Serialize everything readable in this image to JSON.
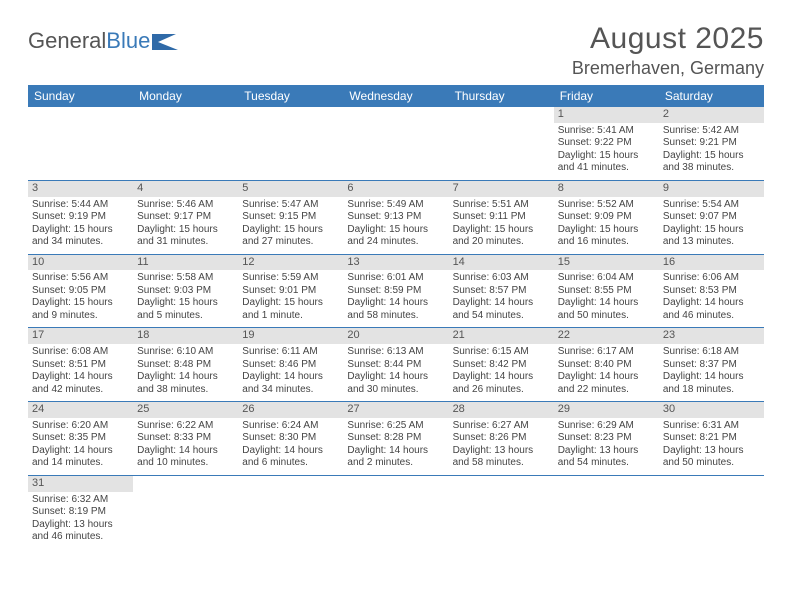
{
  "logo": {
    "text1": "General",
    "text2": "Blue"
  },
  "title": "August 2025",
  "location": "Bremerhaven, Germany",
  "colors": {
    "header_bg": "#3a7ab8",
    "header_fg": "#ffffff",
    "daynum_bg": "#e3e3e3",
    "row_divider": "#3a7ab8",
    "text": "#444444",
    "title_color": "#555555"
  },
  "weekdays": [
    "Sunday",
    "Monday",
    "Tuesday",
    "Wednesday",
    "Thursday",
    "Friday",
    "Saturday"
  ],
  "weeks": [
    [
      {
        "n": "",
        "sr": "",
        "ss": "",
        "dl1": "",
        "dl2": ""
      },
      {
        "n": "",
        "sr": "",
        "ss": "",
        "dl1": "",
        "dl2": ""
      },
      {
        "n": "",
        "sr": "",
        "ss": "",
        "dl1": "",
        "dl2": ""
      },
      {
        "n": "",
        "sr": "",
        "ss": "",
        "dl1": "",
        "dl2": ""
      },
      {
        "n": "",
        "sr": "",
        "ss": "",
        "dl1": "",
        "dl2": ""
      },
      {
        "n": "1",
        "sr": "Sunrise: 5:41 AM",
        "ss": "Sunset: 9:22 PM",
        "dl1": "Daylight: 15 hours",
        "dl2": "and 41 minutes."
      },
      {
        "n": "2",
        "sr": "Sunrise: 5:42 AM",
        "ss": "Sunset: 9:21 PM",
        "dl1": "Daylight: 15 hours",
        "dl2": "and 38 minutes."
      }
    ],
    [
      {
        "n": "3",
        "sr": "Sunrise: 5:44 AM",
        "ss": "Sunset: 9:19 PM",
        "dl1": "Daylight: 15 hours",
        "dl2": "and 34 minutes."
      },
      {
        "n": "4",
        "sr": "Sunrise: 5:46 AM",
        "ss": "Sunset: 9:17 PM",
        "dl1": "Daylight: 15 hours",
        "dl2": "and 31 minutes."
      },
      {
        "n": "5",
        "sr": "Sunrise: 5:47 AM",
        "ss": "Sunset: 9:15 PM",
        "dl1": "Daylight: 15 hours",
        "dl2": "and 27 minutes."
      },
      {
        "n": "6",
        "sr": "Sunrise: 5:49 AM",
        "ss": "Sunset: 9:13 PM",
        "dl1": "Daylight: 15 hours",
        "dl2": "and 24 minutes."
      },
      {
        "n": "7",
        "sr": "Sunrise: 5:51 AM",
        "ss": "Sunset: 9:11 PM",
        "dl1": "Daylight: 15 hours",
        "dl2": "and 20 minutes."
      },
      {
        "n": "8",
        "sr": "Sunrise: 5:52 AM",
        "ss": "Sunset: 9:09 PM",
        "dl1": "Daylight: 15 hours",
        "dl2": "and 16 minutes."
      },
      {
        "n": "9",
        "sr": "Sunrise: 5:54 AM",
        "ss": "Sunset: 9:07 PM",
        "dl1": "Daylight: 15 hours",
        "dl2": "and 13 minutes."
      }
    ],
    [
      {
        "n": "10",
        "sr": "Sunrise: 5:56 AM",
        "ss": "Sunset: 9:05 PM",
        "dl1": "Daylight: 15 hours",
        "dl2": "and 9 minutes."
      },
      {
        "n": "11",
        "sr": "Sunrise: 5:58 AM",
        "ss": "Sunset: 9:03 PM",
        "dl1": "Daylight: 15 hours",
        "dl2": "and 5 minutes."
      },
      {
        "n": "12",
        "sr": "Sunrise: 5:59 AM",
        "ss": "Sunset: 9:01 PM",
        "dl1": "Daylight: 15 hours",
        "dl2": "and 1 minute."
      },
      {
        "n": "13",
        "sr": "Sunrise: 6:01 AM",
        "ss": "Sunset: 8:59 PM",
        "dl1": "Daylight: 14 hours",
        "dl2": "and 58 minutes."
      },
      {
        "n": "14",
        "sr": "Sunrise: 6:03 AM",
        "ss": "Sunset: 8:57 PM",
        "dl1": "Daylight: 14 hours",
        "dl2": "and 54 minutes."
      },
      {
        "n": "15",
        "sr": "Sunrise: 6:04 AM",
        "ss": "Sunset: 8:55 PM",
        "dl1": "Daylight: 14 hours",
        "dl2": "and 50 minutes."
      },
      {
        "n": "16",
        "sr": "Sunrise: 6:06 AM",
        "ss": "Sunset: 8:53 PM",
        "dl1": "Daylight: 14 hours",
        "dl2": "and 46 minutes."
      }
    ],
    [
      {
        "n": "17",
        "sr": "Sunrise: 6:08 AM",
        "ss": "Sunset: 8:51 PM",
        "dl1": "Daylight: 14 hours",
        "dl2": "and 42 minutes."
      },
      {
        "n": "18",
        "sr": "Sunrise: 6:10 AM",
        "ss": "Sunset: 8:48 PM",
        "dl1": "Daylight: 14 hours",
        "dl2": "and 38 minutes."
      },
      {
        "n": "19",
        "sr": "Sunrise: 6:11 AM",
        "ss": "Sunset: 8:46 PM",
        "dl1": "Daylight: 14 hours",
        "dl2": "and 34 minutes."
      },
      {
        "n": "20",
        "sr": "Sunrise: 6:13 AM",
        "ss": "Sunset: 8:44 PM",
        "dl1": "Daylight: 14 hours",
        "dl2": "and 30 minutes."
      },
      {
        "n": "21",
        "sr": "Sunrise: 6:15 AM",
        "ss": "Sunset: 8:42 PM",
        "dl1": "Daylight: 14 hours",
        "dl2": "and 26 minutes."
      },
      {
        "n": "22",
        "sr": "Sunrise: 6:17 AM",
        "ss": "Sunset: 8:40 PM",
        "dl1": "Daylight: 14 hours",
        "dl2": "and 22 minutes."
      },
      {
        "n": "23",
        "sr": "Sunrise: 6:18 AM",
        "ss": "Sunset: 8:37 PM",
        "dl1": "Daylight: 14 hours",
        "dl2": "and 18 minutes."
      }
    ],
    [
      {
        "n": "24",
        "sr": "Sunrise: 6:20 AM",
        "ss": "Sunset: 8:35 PM",
        "dl1": "Daylight: 14 hours",
        "dl2": "and 14 minutes."
      },
      {
        "n": "25",
        "sr": "Sunrise: 6:22 AM",
        "ss": "Sunset: 8:33 PM",
        "dl1": "Daylight: 14 hours",
        "dl2": "and 10 minutes."
      },
      {
        "n": "26",
        "sr": "Sunrise: 6:24 AM",
        "ss": "Sunset: 8:30 PM",
        "dl1": "Daylight: 14 hours",
        "dl2": "and 6 minutes."
      },
      {
        "n": "27",
        "sr": "Sunrise: 6:25 AM",
        "ss": "Sunset: 8:28 PM",
        "dl1": "Daylight: 14 hours",
        "dl2": "and 2 minutes."
      },
      {
        "n": "28",
        "sr": "Sunrise: 6:27 AM",
        "ss": "Sunset: 8:26 PM",
        "dl1": "Daylight: 13 hours",
        "dl2": "and 58 minutes."
      },
      {
        "n": "29",
        "sr": "Sunrise: 6:29 AM",
        "ss": "Sunset: 8:23 PM",
        "dl1": "Daylight: 13 hours",
        "dl2": "and 54 minutes."
      },
      {
        "n": "30",
        "sr": "Sunrise: 6:31 AM",
        "ss": "Sunset: 8:21 PM",
        "dl1": "Daylight: 13 hours",
        "dl2": "and 50 minutes."
      }
    ],
    [
      {
        "n": "31",
        "sr": "Sunrise: 6:32 AM",
        "ss": "Sunset: 8:19 PM",
        "dl1": "Daylight: 13 hours",
        "dl2": "and 46 minutes."
      },
      {
        "n": "",
        "sr": "",
        "ss": "",
        "dl1": "",
        "dl2": ""
      },
      {
        "n": "",
        "sr": "",
        "ss": "",
        "dl1": "",
        "dl2": ""
      },
      {
        "n": "",
        "sr": "",
        "ss": "",
        "dl1": "",
        "dl2": ""
      },
      {
        "n": "",
        "sr": "",
        "ss": "",
        "dl1": "",
        "dl2": ""
      },
      {
        "n": "",
        "sr": "",
        "ss": "",
        "dl1": "",
        "dl2": ""
      },
      {
        "n": "",
        "sr": "",
        "ss": "",
        "dl1": "",
        "dl2": ""
      }
    ]
  ]
}
